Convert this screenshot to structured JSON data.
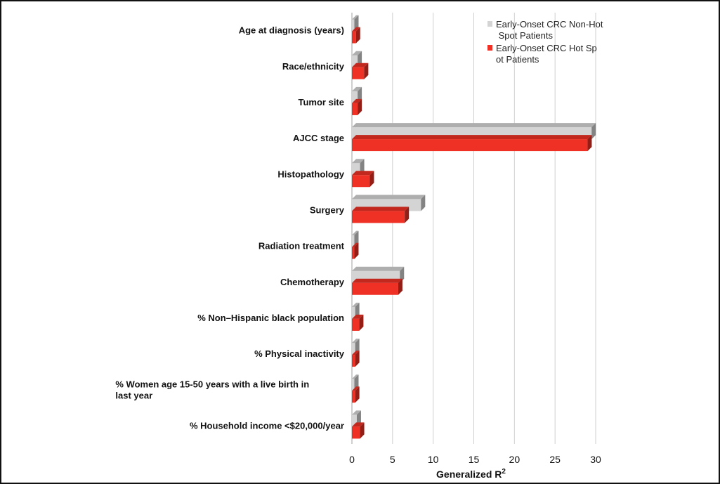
{
  "chart_data": {
    "type": "bar",
    "orientation": "horizontal",
    "style": "3d",
    "categories": [
      "Age at diagnosis (years)",
      "Race/ethnicity",
      "Tumor site",
      "AJCC stage",
      "Histopathology",
      "Surgery",
      "Radiation treatment",
      "Chemotherapy",
      "% Non–Hispanic black population",
      "% Physical inactivity",
      "% Women age 15-50 years with a live birth in last year",
      "% Household income <$20,000/year"
    ],
    "series": [
      {
        "name": "Early-Onset CRC Non-Hot Spot Patients",
        "color": "#d4d4d4",
        "values": [
          0.3,
          0.7,
          0.7,
          29.5,
          1.0,
          8.5,
          0.3,
          5.9,
          0.4,
          0.4,
          0.3,
          0.6
        ]
      },
      {
        "name": "Early-Onset CRC Hot Spot Patients",
        "color": "#ee3124",
        "values": [
          0.5,
          1.5,
          0.7,
          29.0,
          2.2,
          6.5,
          0.3,
          5.7,
          0.9,
          0.4,
          0.4,
          1.0
        ]
      }
    ],
    "xlabel": "Generalized R",
    "xlabel_superscript": "2",
    "ylabel": "",
    "xlim": [
      0,
      30
    ],
    "xticks": [
      0,
      5,
      10,
      15,
      20,
      25,
      30
    ],
    "grid": "vertical",
    "legend": "top-right"
  }
}
